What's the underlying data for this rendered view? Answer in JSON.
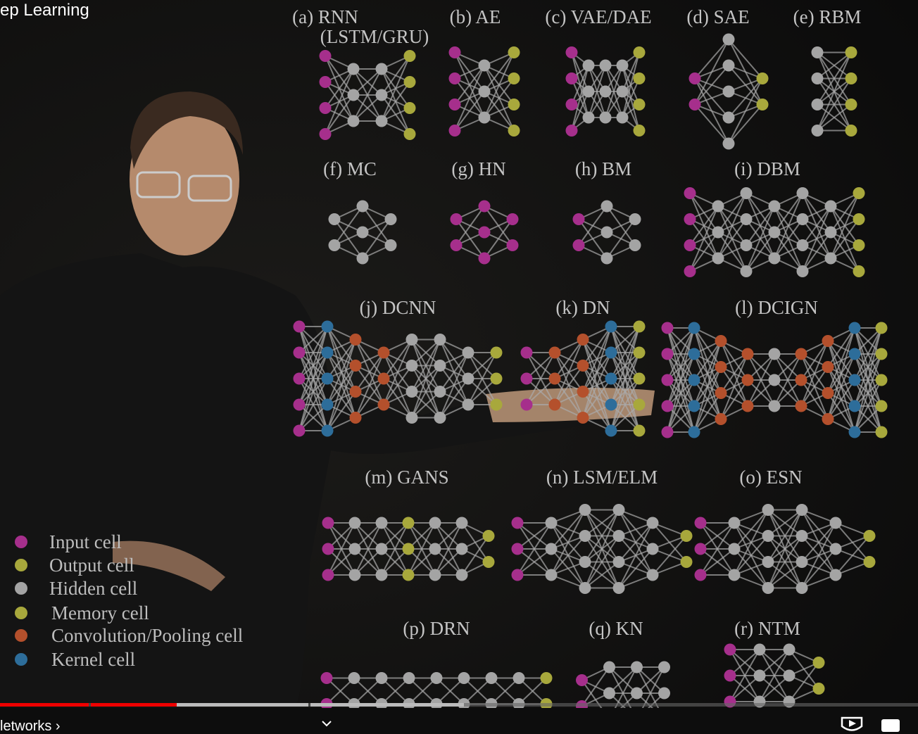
{
  "video": {
    "title": "ep Learning",
    "chapter": "letworks ›"
  },
  "diagrams": [
    {
      "label": "(a) RNN",
      "sublabel": "(LSTM/GRU)"
    },
    {
      "label": "(b) AE"
    },
    {
      "label": "(c) VAE/DAE"
    },
    {
      "label": "(d) SAE"
    },
    {
      "label": "(e) RBM"
    },
    {
      "label": "(f) MC"
    },
    {
      "label": "(g) HN"
    },
    {
      "label": "(h) BM"
    },
    {
      "label": "(i) DBM"
    },
    {
      "label": "(j) DCNN"
    },
    {
      "label": "(k) DN"
    },
    {
      "label": "(l) DCIGN"
    },
    {
      "label": "(m) GANS"
    },
    {
      "label": "(n) LSM/ELM"
    },
    {
      "label": "(o) ESN"
    },
    {
      "label": "(p) DRN"
    },
    {
      "label": "(q) KN"
    },
    {
      "label": "(r) NTM"
    }
  ],
  "legend": [
    "Input cell",
    "Output cell",
    "Hidden cell",
    "Memory cell",
    "Convolution/Pooling cell",
    "Kernel cell"
  ]
}
